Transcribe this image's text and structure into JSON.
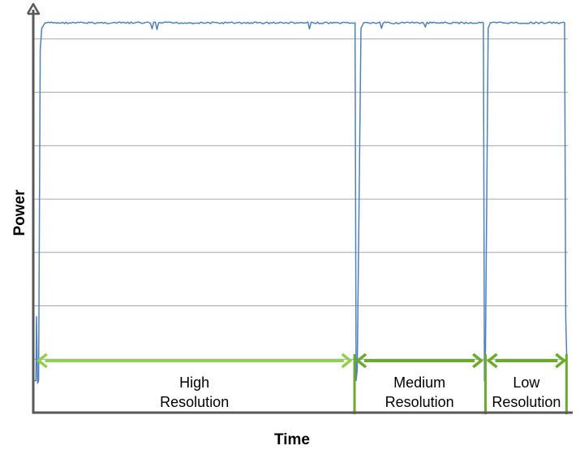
{
  "chart_data": {
    "type": "line",
    "xlabel": "Time",
    "ylabel": "Power",
    "x_tick_labels": [],
    "y_tick_labels": [],
    "grid": "horizontal",
    "xlim": [
      0,
      100
    ],
    "ylim": [
      0,
      7.5
    ],
    "y_gridlines": [
      1,
      2,
      3,
      4,
      5,
      6,
      7
    ],
    "series": [
      {
        "color": "#4f81bd",
        "points": [
          [
            0,
            0.6
          ],
          [
            0.5,
            0.6
          ],
          [
            0.6,
            1.8
          ],
          [
            0.8,
            0.55
          ],
          [
            1.0,
            0.6
          ],
          [
            1.3,
            6.8
          ],
          [
            1.6,
            7.2
          ],
          [
            2.2,
            7.3
          ],
          [
            60.2,
            7.3
          ],
          [
            60.4,
            0.6
          ],
          [
            60.6,
            0.8
          ],
          [
            61.3,
            7.2
          ],
          [
            61.8,
            7.3
          ],
          [
            84.2,
            7.3
          ],
          [
            84.4,
            0.6
          ],
          [
            84.6,
            1.2
          ],
          [
            85.1,
            7.2
          ],
          [
            85.5,
            7.3
          ],
          [
            99.4,
            7.3
          ],
          [
            99.6,
            1.8
          ],
          [
            99.8,
            1.0
          ]
        ]
      }
    ],
    "regions": [
      {
        "start": 0.7,
        "end": 59.6,
        "label_line1": "High",
        "label_line2": "Resolution",
        "color": "#92d050"
      },
      {
        "start": 60.4,
        "end": 84.1,
        "label_line1": "Medium",
        "label_line2": "Resolution",
        "color": "#6aab2e"
      },
      {
        "start": 84.9,
        "end": 99.6,
        "label_line1": "Low",
        "label_line2": "Resolution",
        "color": "#6aab2e"
      }
    ],
    "colors": {
      "axis": "#595959",
      "grid": "#a6a6a6",
      "line": "#4f81bd"
    }
  }
}
